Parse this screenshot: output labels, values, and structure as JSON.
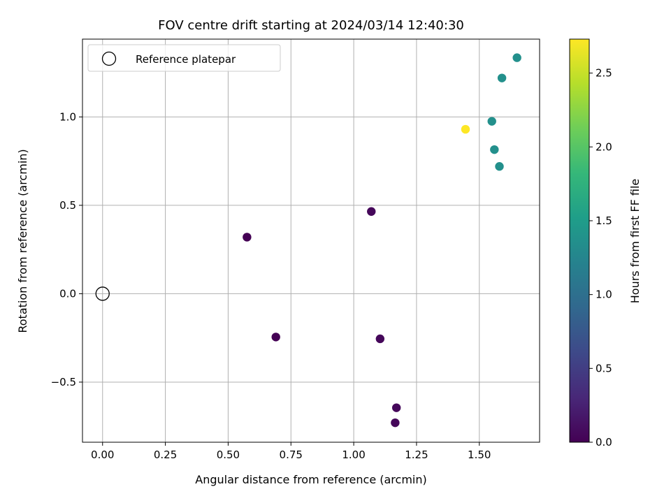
{
  "chart_data": {
    "type": "scatter",
    "title": "FOV centre drift starting at 2024/03/14 12:40:30",
    "xlabel": "Angular distance from reference (arcmin)",
    "ylabel": "Rotation from reference (arcmin)",
    "xlim": [
      -0.08,
      1.74
    ],
    "ylim": [
      -0.84,
      1.44
    ],
    "xticks": [
      0.0,
      0.25,
      0.5,
      0.75,
      1.0,
      1.25,
      1.5
    ],
    "xtick_labels": [
      "0.00",
      "0.25",
      "0.50",
      "0.75",
      "1.00",
      "1.25",
      "1.50"
    ],
    "yticks": [
      -0.5,
      0.0,
      0.5,
      1.0
    ],
    "ytick_labels": [
      "−0.5",
      "0.0",
      "0.5",
      "1.0"
    ],
    "grid": true,
    "legend": {
      "position": "top-left",
      "entries": [
        "Reference platepar"
      ]
    },
    "reference_point": {
      "x": 0.0,
      "y": 0.0
    },
    "points": [
      {
        "x": 0.575,
        "y": 0.32,
        "hours": 0.0
      },
      {
        "x": 0.69,
        "y": -0.245,
        "hours": 0.0
      },
      {
        "x": 1.07,
        "y": 0.465,
        "hours": 0.05
      },
      {
        "x": 1.105,
        "y": -0.255,
        "hours": 0.05
      },
      {
        "x": 1.17,
        "y": -0.645,
        "hours": 0.05
      },
      {
        "x": 1.165,
        "y": -0.73,
        "hours": 0.05
      },
      {
        "x": 1.445,
        "y": 0.93,
        "hours": 2.73
      },
      {
        "x": 1.55,
        "y": 0.975,
        "hours": 1.36
      },
      {
        "x": 1.56,
        "y": 0.815,
        "hours": 1.36
      },
      {
        "x": 1.58,
        "y": 0.72,
        "hours": 1.36
      },
      {
        "x": 1.59,
        "y": 1.22,
        "hours": 1.36
      },
      {
        "x": 1.65,
        "y": 1.335,
        "hours": 1.36
      }
    ],
    "colorbar": {
      "label": "Hours from first FF file",
      "colormap": "viridis",
      "range": [
        0.0,
        2.73
      ],
      "ticks": [
        0.0,
        0.5,
        1.0,
        1.5,
        2.0,
        2.5
      ],
      "tick_labels": [
        "0.0",
        "0.5",
        "1.0",
        "1.5",
        "2.0",
        "2.5"
      ],
      "colors": [
        "#440154",
        "#482878",
        "#3e4989",
        "#31688e",
        "#26828e",
        "#1f9e89",
        "#35b779",
        "#6ece58",
        "#b5de2b",
        "#fde725"
      ]
    }
  }
}
